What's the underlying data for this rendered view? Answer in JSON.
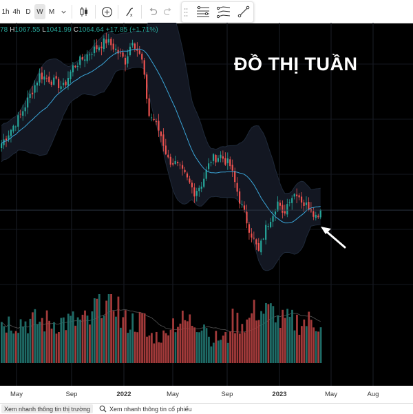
{
  "toolbar": {
    "intervals": [
      "1h",
      "4h",
      "D",
      "W",
      "M"
    ],
    "active_interval": "W",
    "icons": [
      "chevron-down-icon",
      "candlestick-icon",
      "add-indicator-icon",
      "indicators-icon",
      "undo-icon",
      "redo-icon"
    ]
  },
  "drawing_panel": {
    "icons": [
      "drag-handle-icon",
      "horizontal-lines-icon",
      "multi-line-icon",
      "trend-line-icon"
    ]
  },
  "ohlc": {
    "open_partial": "78",
    "h_label": "H",
    "high": "1067.55",
    "l_label": "L",
    "low": "1041.99",
    "c_label": "C",
    "close": "1064.64",
    "change": "+17.85 (+1.71%)"
  },
  "chart_title": "ĐỒ THỊ TUẦN",
  "x_axis": {
    "labels": [
      {
        "text": "May",
        "bold": false
      },
      {
        "text": "Sep",
        "bold": false
      },
      {
        "text": "2022",
        "bold": true
      },
      {
        "text": "May",
        "bold": false
      },
      {
        "text": "Sep",
        "bold": false
      },
      {
        "text": "2023",
        "bold": true
      },
      {
        "text": "May",
        "bold": false
      },
      {
        "text": "Aug",
        "bold": false
      }
    ]
  },
  "bottom_bar": {
    "market_button": "Xem nhanh thông tin thị trường",
    "stock_button": "Xem nhanh thông tin cổ phiếu"
  },
  "colors": {
    "up": "#26a69a",
    "down": "#ef5350",
    "band_fill": "#131722",
    "midline": "#3aa6d9",
    "annotation_arrow": "#ffffff"
  },
  "chart_data": {
    "type": "candlestick",
    "interval": "W",
    "indicator": "Bollinger Bands",
    "y_min": 880,
    "y_max": 1530,
    "last_candle": {
      "open": 1046.79,
      "high": 1067.55,
      "low": 1041.99,
      "close": 1064.64,
      "change": 17.85,
      "change_pct": 1.71
    },
    "close_anchors": [
      [
        0,
        1230
      ],
      [
        8,
        1300
      ],
      [
        12,
        1350
      ],
      [
        16,
        1400
      ],
      [
        20,
        1390
      ],
      [
        26,
        1370
      ],
      [
        30,
        1420
      ],
      [
        38,
        1460
      ],
      [
        44,
        1485
      ],
      [
        47,
        1470
      ],
      [
        52,
        1435
      ],
      [
        55,
        1490
      ],
      [
        59,
        1435
      ],
      [
        62,
        1300
      ],
      [
        64,
        1290
      ],
      [
        67,
        1250
      ],
      [
        70,
        1190
      ],
      [
        73,
        1180
      ],
      [
        77,
        1150
      ],
      [
        81,
        1110
      ],
      [
        84,
        1130
      ],
      [
        88,
        1190
      ],
      [
        92,
        1200
      ],
      [
        96,
        1175
      ],
      [
        100,
        1090
      ],
      [
        104,
        1020
      ],
      [
        106,
        990
      ],
      [
        108,
        960
      ],
      [
        111,
        1020
      ],
      [
        114,
        1060
      ],
      [
        116,
        1085
      ],
      [
        118,
        1050
      ],
      [
        121,
        1095
      ],
      [
        124,
        1110
      ],
      [
        127,
        1080
      ],
      [
        130,
        1070
      ],
      [
        132,
        1050
      ],
      [
        134,
        1064
      ]
    ]
  }
}
